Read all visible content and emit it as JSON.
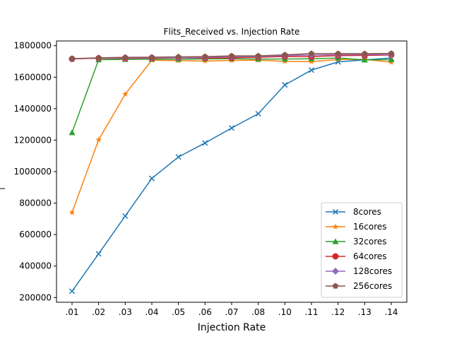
{
  "chart_data": {
    "type": "line",
    "title": "Flits_Received vs. Injection Rate",
    "xlabel": "Injection Rate",
    "ylabel": "_",
    "categories": [
      ".01",
      ".02",
      ".03",
      ".04",
      ".05",
      ".06",
      ".07",
      ".08",
      ".10",
      ".11",
      ".12",
      ".13",
      ".14"
    ],
    "ylim": [
      170000,
      1830000
    ],
    "yticks": [
      200000,
      400000,
      600000,
      800000,
      1000000,
      1200000,
      1400000,
      1600000,
      1800000
    ],
    "grid": false,
    "legend_position": "lower-right",
    "series": [
      {
        "name": "8cores",
        "color": "#1f77b4",
        "marker": "x",
        "values": [
          240000,
          478000,
          718000,
          957000,
          1093000,
          1182000,
          1277000,
          1368000,
          1551000,
          1645000,
          1697000,
          1710000,
          1722000
        ]
      },
      {
        "name": "16cores",
        "color": "#ff7f0e",
        "marker": "star",
        "values": [
          740000,
          1202000,
          1492000,
          1708000,
          1705000,
          1702000,
          1706000,
          1708000,
          1700000,
          1699000,
          1712000,
          1713000,
          1695000
        ]
      },
      {
        "name": "32cores",
        "color": "#2ca02c",
        "marker": "triangle",
        "values": [
          1248000,
          1711000,
          1713000,
          1714000,
          1714000,
          1716000,
          1717000,
          1715000,
          1715000,
          1717000,
          1722000,
          1710000,
          1711000
        ]
      },
      {
        "name": "64cores",
        "color": "#d62728",
        "marker": "circle",
        "values": [
          1716000,
          1720000,
          1719000,
          1721000,
          1723000,
          1722000,
          1723000,
          1727000,
          1731000,
          1731000,
          1737000,
          1738000,
          1741000
        ]
      },
      {
        "name": "128cores",
        "color": "#9467bd",
        "marker": "diamond",
        "values": [
          1717000,
          1721000,
          1722000,
          1724000,
          1723000,
          1726000,
          1730000,
          1731000,
          1737000,
          1740000,
          1743000,
          1744000,
          1743000
        ]
      },
      {
        "name": "256cores",
        "color": "#8c564b",
        "marker": "pentagon",
        "values": [
          1718000,
          1723000,
          1726000,
          1727000,
          1729000,
          1731000,
          1735000,
          1735000,
          1742000,
          1750000,
          1750000,
          1749000,
          1751000
        ]
      }
    ]
  }
}
